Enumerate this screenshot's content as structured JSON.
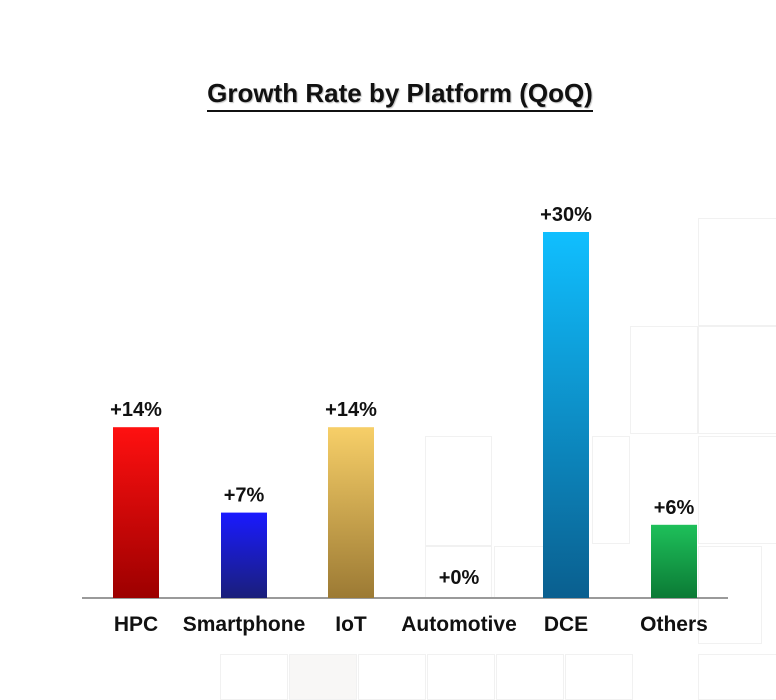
{
  "chart_data": {
    "type": "bar",
    "title": "Growth Rate by Platform (QoQ)",
    "categories": [
      "HPC",
      "Smartphone",
      "IoT",
      "Automotive",
      "DCE",
      "Others"
    ],
    "values": [
      14,
      7,
      14,
      0,
      30,
      6
    ],
    "data_labels": [
      "+14%",
      "+7%",
      "+14%",
      "+0%",
      "+30%",
      "+6%"
    ],
    "unit": "%",
    "ylim": [
      0,
      30
    ],
    "grid": false,
    "legend": "none",
    "colors": [
      [
        "#ff1010",
        "#9c0000"
      ],
      [
        "#1a1aff",
        "#1a1f7a"
      ],
      [
        "#f7cf68",
        "#9c7a34"
      ],
      [
        "#cccccc",
        "#888888"
      ],
      [
        "#10bfff",
        "#0a5f8f"
      ],
      [
        "#1ec05a",
        "#0b7a35"
      ]
    ],
    "axis_color": "#9a9a9a"
  }
}
